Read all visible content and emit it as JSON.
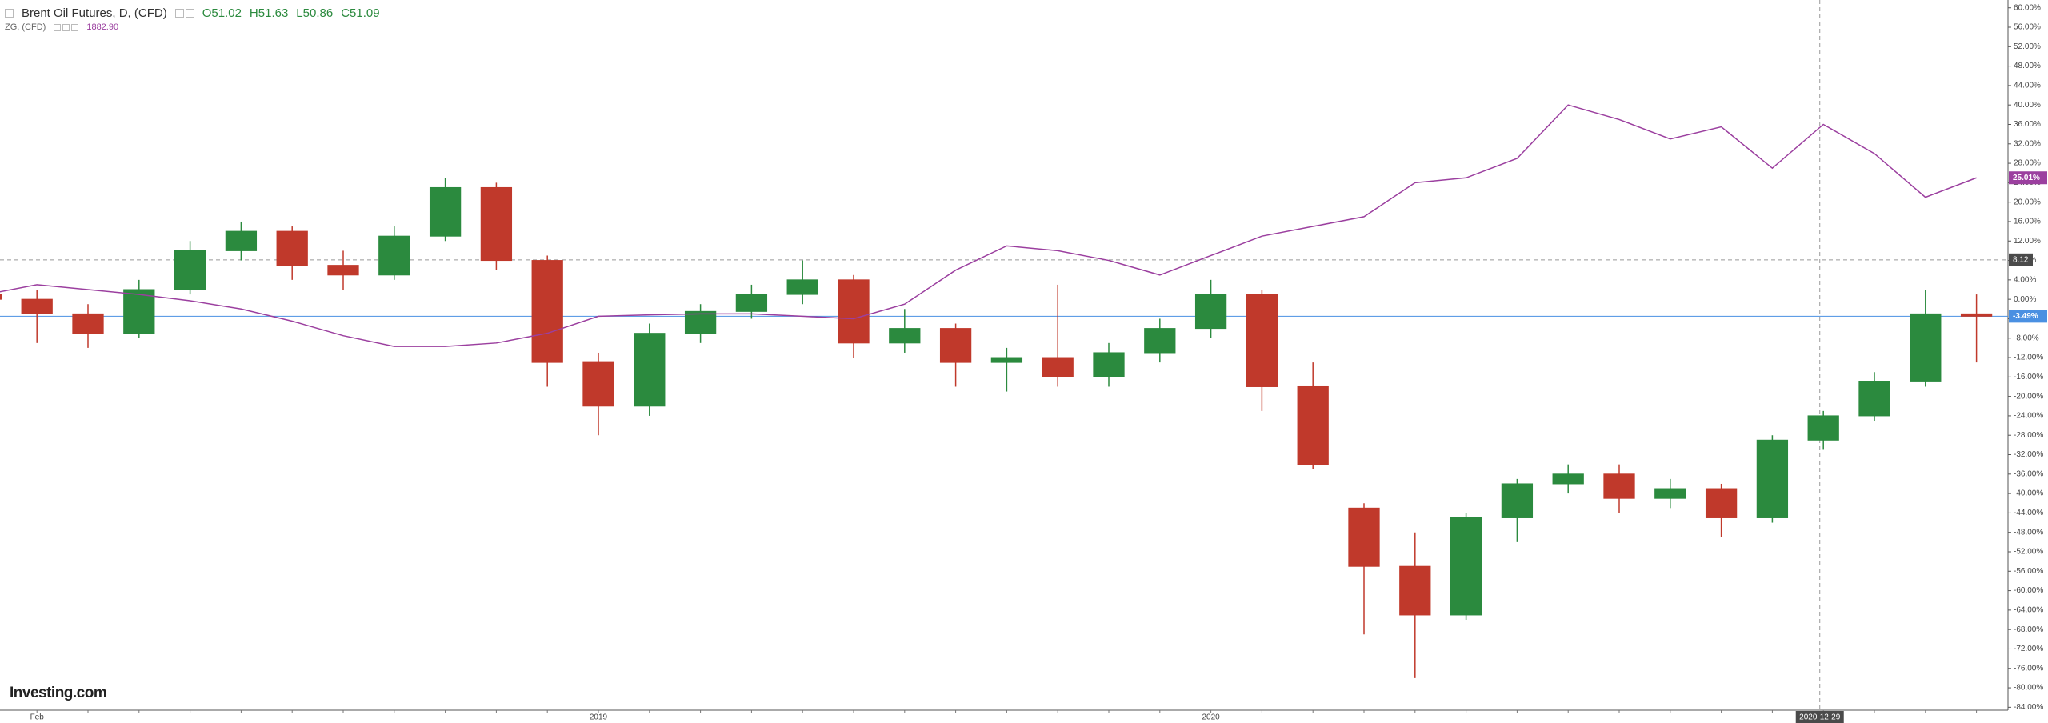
{
  "header": {
    "title": "Brent Oil Futures, D, (CFD)",
    "open": "O51.02",
    "high": "H51.63",
    "low": "L50.86",
    "close": "C51.09",
    "compare_name": "ZG, (CFD)",
    "compare_value": "1882.90"
  },
  "logo": "Investing.com",
  "chart_data": {
    "type": "candlestick",
    "categories": [
      null,
      "Feb",
      null,
      null,
      null,
      null,
      null,
      null,
      null,
      null,
      null,
      null,
      "2019",
      null,
      null,
      null,
      null,
      null,
      null,
      null,
      null,
      null,
      null,
      null,
      "2020",
      null,
      null,
      null,
      null,
      null,
      null,
      null,
      null,
      null,
      null,
      null,
      null,
      null,
      null,
      null
    ],
    "series": [
      {
        "name": "Brent Oil Futures, D, (CFD)",
        "type": "candlestick",
        "up_color": "#2b8a3e",
        "down_color": "#c0392b",
        "last_label": "-3.49%",
        "last_color": "#4a90e2",
        "values": [
          [
            1,
            3,
            -2,
            0
          ],
          [
            0,
            2,
            -9,
            -3
          ],
          [
            -3,
            -1,
            -10,
            -7
          ],
          [
            -7,
            4,
            -8,
            2
          ],
          [
            2,
            12,
            1,
            10
          ],
          [
            10,
            16,
            8,
            14
          ],
          [
            14,
            15,
            4,
            7
          ],
          [
            7,
            10,
            2,
            5
          ],
          [
            5,
            15,
            4,
            13
          ],
          [
            13,
            25,
            12,
            23
          ],
          [
            23,
            24,
            6,
            8
          ],
          [
            8,
            9,
            -18,
            -13
          ],
          [
            -13,
            -11,
            -28,
            -22
          ],
          [
            -22,
            -5,
            -24,
            -7
          ],
          [
            -7,
            -1,
            -9,
            -2.5
          ],
          [
            -2.5,
            3,
            -4,
            1
          ],
          [
            1,
            8,
            -1,
            4
          ],
          [
            4,
            5,
            -12,
            -9
          ],
          [
            -9,
            -2,
            -11,
            -6
          ],
          [
            -6,
            -5,
            -18,
            -13
          ],
          [
            -13,
            -10,
            -19,
            -12
          ],
          [
            -12,
            3,
            -18,
            -16
          ],
          [
            -16,
            -9,
            -18,
            -11
          ],
          [
            -11,
            -4,
            -13,
            -6
          ],
          [
            -6,
            4,
            -8,
            1
          ],
          [
            1,
            2,
            -23,
            -18
          ],
          [
            -18,
            -13,
            -35,
            -34
          ],
          [
            -43,
            -42,
            -69,
            -55
          ],
          [
            -55,
            -48,
            -78,
            -65
          ],
          [
            -65,
            -44,
            -66,
            -45
          ],
          [
            -45,
            -37,
            -50,
            -38
          ],
          [
            -38,
            -34,
            -40,
            -36
          ],
          [
            -36,
            -34,
            -44,
            -41
          ],
          [
            -41,
            -37,
            -43,
            -39
          ],
          [
            -39,
            -38,
            -49,
            -45
          ],
          [
            -45,
            -28,
            -46,
            -29
          ],
          [
            -29,
            -23,
            -31,
            -24
          ],
          [
            -24,
            -15,
            -25,
            -17
          ],
          [
            -17,
            2,
            -18,
            -3
          ],
          [
            -3,
            1,
            -13,
            -3.49
          ]
        ]
      },
      {
        "name": "ZG, (CFD)",
        "type": "line",
        "color": "#9b3f9f",
        "last_label": "25.01%",
        "values": [
          1,
          3,
          2,
          1,
          -0.3,
          -2,
          -4.5,
          -7.5,
          -9.7,
          -9.7,
          -9,
          -7,
          -3.5,
          -3.2,
          -3,
          -3,
          -3.5,
          -4,
          -1,
          6,
          11,
          10,
          8,
          5,
          9,
          13,
          15,
          17,
          24,
          25,
          29,
          40,
          37,
          33,
          35.5,
          27,
          36,
          30,
          21,
          25.01
        ]
      }
    ],
    "crosshair": {
      "x_label": "2020-12-29",
      "y_value": 8.12
    },
    "ylim": [
      -84.6,
      61.6
    ],
    "yticks": [
      {
        "value": 60,
        "label": "60.00%"
      },
      {
        "value": 56,
        "label": "56.00%"
      },
      {
        "value": 52,
        "label": "52.00%"
      },
      {
        "value": 48,
        "label": "48.00%"
      },
      {
        "value": 44,
        "label": "44.00%"
      },
      {
        "value": 40,
        "label": "40.00%"
      },
      {
        "value": 36,
        "label": "36.00%"
      },
      {
        "value": 32,
        "label": "32.00%"
      },
      {
        "value": 28,
        "label": "28.00%"
      },
      {
        "value": 24,
        "label": "24.00%"
      },
      {
        "value": 20,
        "label": "20.00%"
      },
      {
        "value": 16,
        "label": "16.00%"
      },
      {
        "value": 12,
        "label": "12.00%"
      },
      {
        "value": 8,
        "label": "8.00%"
      },
      {
        "value": 4,
        "label": "4.00%"
      },
      {
        "value": 0,
        "label": "0.00%"
      },
      {
        "value": -4,
        "label": "-4.00%"
      },
      {
        "value": -8,
        "label": "-8.00%"
      },
      {
        "value": -12,
        "label": "-12.00%"
      },
      {
        "value": -16,
        "label": "-16.00%"
      },
      {
        "value": -20,
        "label": "-20.00%"
      },
      {
        "value": -24,
        "label": "-24.00%"
      },
      {
        "value": -28,
        "label": "-28.00%"
      },
      {
        "value": -32,
        "label": "-32.00%"
      },
      {
        "value": -36,
        "label": "-36.00%"
      },
      {
        "value": -40,
        "label": "-40.00%"
      },
      {
        "value": -44,
        "label": "-44.00%"
      },
      {
        "value": -48,
        "label": "-48.00%"
      },
      {
        "value": -52,
        "label": "-52.00%"
      },
      {
        "value": -56,
        "label": "-56.00%"
      },
      {
        "value": -60,
        "label": "-60.00%"
      },
      {
        "value": -64,
        "label": "-64.00%"
      },
      {
        "value": -68,
        "label": "-68.00%"
      },
      {
        "value": -72,
        "label": "-72.00%"
      },
      {
        "value": -76,
        "label": "-76.00%"
      },
      {
        "value": -80,
        "label": "-80.00%"
      },
      {
        "value": -84,
        "label": "-84.00%"
      }
    ],
    "grid": false
  }
}
